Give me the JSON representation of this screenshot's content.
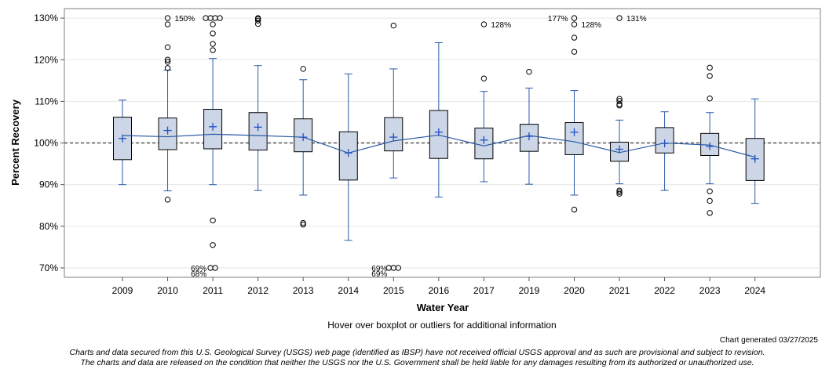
{
  "chart_data": {
    "type": "boxplot",
    "ylabel": "Percent Recovery",
    "xlabel": "Water Year",
    "ylim": [
      68,
      132
    ],
    "y_ticks": [
      70,
      80,
      90,
      100,
      110,
      120,
      130
    ],
    "y_tick_labels": [
      "70%",
      "80%",
      "90%",
      "100%",
      "110%",
      "120%",
      "130%"
    ],
    "reference_line": 100,
    "categories": [
      "2009",
      "2010",
      "2011",
      "2012",
      "2013",
      "2014",
      "2015",
      "2016",
      "2017",
      "2019",
      "2020",
      "2021",
      "2022",
      "2023",
      "2024"
    ],
    "boxes": [
      {
        "year": "2009",
        "min": 90.0,
        "q1": 96.0,
        "median": 101.8,
        "q3": 106.2,
        "max": 110.3,
        "mean": 101.1,
        "outliers": []
      },
      {
        "year": "2010",
        "min": 88.5,
        "q1": 98.4,
        "median": 101.5,
        "q3": 106.0,
        "max": 117.5,
        "mean": 103.0,
        "outliers": [
          86.4,
          118.0,
          119.5,
          120.0,
          123.0,
          128.5,
          130.0
        ]
      },
      {
        "year": "2011",
        "min": 90.0,
        "q1": 98.6,
        "median": 102.1,
        "q3": 108.1,
        "max": 120.3,
        "mean": 103.9,
        "outliers": [
          70.0,
          70.0,
          75.5,
          81.4,
          122.3,
          123.8,
          126.3,
          128.5,
          130.0,
          130.0,
          130.0,
          130.0
        ]
      },
      {
        "year": "2012",
        "min": 88.6,
        "q1": 98.3,
        "median": 101.8,
        "q3": 107.3,
        "max": 118.6,
        "mean": 103.8,
        "outliers": [
          128.6,
          129.4,
          129.8,
          130.0
        ]
      },
      {
        "year": "2013",
        "min": 87.5,
        "q1": 97.9,
        "median": 101.4,
        "q3": 105.8,
        "max": 115.2,
        "mean": 101.4,
        "outliers": [
          80.4,
          80.8,
          117.8
        ]
      },
      {
        "year": "2014",
        "min": 76.6,
        "q1": 91.1,
        "median": 97.6,
        "q3": 102.7,
        "max": 116.6,
        "mean": 97.6,
        "outliers": []
      },
      {
        "year": "2015",
        "min": 91.6,
        "q1": 98.1,
        "median": 100.5,
        "q3": 106.1,
        "max": 117.8,
        "mean": 101.4,
        "outliers": [
          70.0,
          70.0,
          70.0,
          128.2
        ]
      },
      {
        "year": "2016",
        "min": 87.0,
        "q1": 96.3,
        "median": 101.9,
        "q3": 107.8,
        "max": 124.1,
        "mean": 102.6,
        "outliers": []
      },
      {
        "year": "2017",
        "min": 90.7,
        "q1": 96.2,
        "median": 99.3,
        "q3": 103.6,
        "max": 112.4,
        "mean": 100.7,
        "outliers": [
          115.5,
          128.5
        ]
      },
      {
        "year": "2019",
        "min": 90.1,
        "q1": 98.0,
        "median": 101.8,
        "q3": 104.5,
        "max": 113.2,
        "mean": 101.6,
        "outliers": [
          117.1
        ]
      },
      {
        "year": "2020",
        "min": 87.5,
        "q1": 97.2,
        "median": 100.3,
        "q3": 104.9,
        "max": 112.6,
        "mean": 102.6,
        "outliers": [
          84.0,
          121.9,
          125.3,
          128.5,
          130.0
        ]
      },
      {
        "year": "2021",
        "min": 90.2,
        "q1": 95.6,
        "median": 97.7,
        "q3": 100.2,
        "max": 105.5,
        "mean": 98.5,
        "outliers": [
          87.8,
          88.2,
          88.6,
          109.0,
          109.3,
          110.1,
          110.6,
          130.0
        ]
      },
      {
        "year": "2022",
        "min": 88.6,
        "q1": 97.6,
        "median": 100.0,
        "q3": 103.7,
        "max": 107.5,
        "mean": 99.9,
        "outliers": []
      },
      {
        "year": "2023",
        "min": 90.2,
        "q1": 97.0,
        "median": 99.5,
        "q3": 102.3,
        "max": 107.3,
        "mean": 99.2,
        "outliers": [
          83.2,
          86.1,
          88.4,
          110.7,
          116.1,
          118.1
        ]
      },
      {
        "year": "2024",
        "min": 85.5,
        "q1": 91.0,
        "median": 96.6,
        "q3": 101.1,
        "max": 110.6,
        "mean": 96.2,
        "outliers": []
      }
    ],
    "outlier_labels": [
      {
        "year": "2010",
        "text": "150%",
        "y": 130.0,
        "anchor": "right"
      },
      {
        "year": "2011",
        "text": "69%",
        "y": 70.0,
        "anchor": "left"
      },
      {
        "year": "2011",
        "text": "68%",
        "y": 68.7,
        "anchor": "left"
      },
      {
        "year": "2015",
        "text": "69%",
        "y": 70.0,
        "anchor": "left"
      },
      {
        "year": "2015",
        "text": "69%",
        "y": 68.7,
        "anchor": "left"
      },
      {
        "year": "2017",
        "text": "128%",
        "y": 128.5,
        "anchor": "right"
      },
      {
        "year": "2020",
        "text": "177%",
        "y": 130.0,
        "anchor": "left"
      },
      {
        "year": "2020",
        "text": "128%",
        "y": 128.5,
        "anchor": "right"
      },
      {
        "year": "2021",
        "text": "131%",
        "y": 130.0,
        "anchor": "right"
      }
    ],
    "colors": {
      "box_fill": "#cdd6e6",
      "box_stroke": "#3a5a8f",
      "whisker": "#2a5aa8",
      "median_line": "#2a5aa8",
      "mean_marker": "#1d4fc7",
      "reference_line": "#555555",
      "grid": "#e6e6e6",
      "outlier": "#000000"
    }
  },
  "footer": {
    "hover_note": "Hover over boxplot or outliers for additional information",
    "generated": "Chart generated 03/27/2025",
    "disclaimer_line1": "Charts and data secured from this U.S. Geological Survey (USGS) web page (identified as IBSP) have not received official USGS approval and as such are provisional and subject to revision.",
    "disclaimer_line2": "The charts and data are released on the condition that neither the USGS nor the U.S. Government shall be held liable for any damages resulting from its authorized or unauthorized use."
  }
}
